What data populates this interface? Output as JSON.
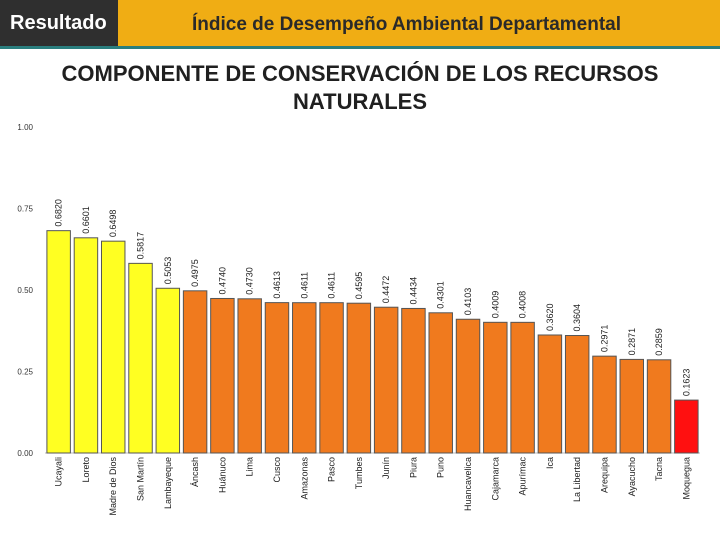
{
  "header": {
    "tab_label": "Resultado",
    "title": "Índice de Desempeño Ambiental Departamental"
  },
  "colors": {
    "header": "#f0ad14",
    "accent_line": "#2a7e7e",
    "high": "#ffff22",
    "mid": "#f07a1e",
    "low": "#ff1010",
    "bar_edge": "#555555"
  },
  "chart_data": {
    "type": "bar",
    "title_line1": "COMPONENTE DE CONSERVACIÓN DE LOS RECURSOS",
    "title_line2": "NATURALES",
    "xlabel": "",
    "ylabel": "",
    "ylim": [
      0,
      1
    ],
    "yticks": [
      "0.00",
      "0.25",
      "0.50",
      "0.75",
      "1.00"
    ],
    "ytick_values": [
      0,
      0.25,
      0.5,
      0.75,
      1
    ],
    "categories": [
      "Ucayali",
      "Loreto",
      "Madre de Dios",
      "San Martín",
      "Lambayeque",
      "Áncash",
      "Huánuco",
      "Lima",
      "Cusco",
      "Amazonas",
      "Pasco",
      "Tumbes",
      "Junín",
      "Piura",
      "Puno",
      "Huancavelica",
      "Cajamarca",
      "Apurímac",
      "Ica",
      "La Libertad",
      "Arequipa",
      "Ayacucho",
      "Tacna",
      "Moquegua"
    ],
    "values": [
      0.682,
      0.6601,
      0.6498,
      0.5817,
      0.5053,
      0.4975,
      0.474,
      0.473,
      0.4613,
      0.4611,
      0.4611,
      0.4595,
      0.4472,
      0.4434,
      0.4301,
      0.4103,
      0.4009,
      0.4008,
      0.362,
      0.3604,
      0.2971,
      0.2871,
      0.2859,
      0.1623
    ],
    "value_labels": [
      "0.6820",
      "0.6601",
      "0.6498",
      "0.5817",
      "0.5053",
      "0.4975",
      "0.4740",
      "0.4730",
      "0.4613",
      "0.4611",
      "0.4611",
      "0.4595",
      "0.4472",
      "0.4434",
      "0.4301",
      "0.4103",
      "0.4009",
      "0.4008",
      "0.3620",
      "0.3604",
      "0.2971",
      "0.2871",
      "0.2859",
      "0.1623"
    ],
    "color_classes": [
      "high",
      "high",
      "high",
      "high",
      "high",
      "mid",
      "mid",
      "mid",
      "mid",
      "mid",
      "mid",
      "mid",
      "mid",
      "mid",
      "mid",
      "mid",
      "mid",
      "mid",
      "mid",
      "mid",
      "mid",
      "mid",
      "mid",
      "low"
    ],
    "grid": false,
    "legend": "none"
  }
}
